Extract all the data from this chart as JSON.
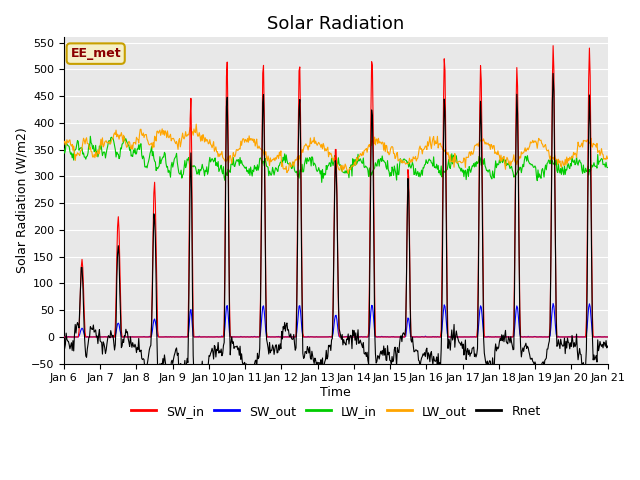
{
  "title": "Solar Radiation",
  "xlabel": "Time",
  "ylabel": "Solar Radiation (W/m2)",
  "ylim": [
    -50,
    560
  ],
  "yticks": [
    -50,
    0,
    50,
    100,
    150,
    200,
    250,
    300,
    350,
    400,
    450,
    500,
    550
  ],
  "xlim_start": 6,
  "xlim_end": 21,
  "xtick_labels": [
    "Jan 6",
    "Jan 7",
    "Jan 8",
    "Jan 9",
    "Jan 10",
    "Jan 11",
    "Jan 12",
    "Jan 13",
    "Jan 14",
    "Jan 15",
    "Jan 16",
    "Jan 17",
    "Jan 18",
    "Jan 19",
    "Jan 20",
    "Jan 21"
  ],
  "colors": {
    "SW_in": "#ff0000",
    "SW_out": "#0000ff",
    "LW_in": "#00cc00",
    "LW_out": "#ffa500",
    "Rnet": "#000000"
  },
  "legend_labels": [
    "SW_in",
    "SW_out",
    "LW_in",
    "LW_out",
    "Rnet"
  ],
  "watermark_text": "EE_met",
  "watermark_color": "#8B0000",
  "watermark_bg": "#f5f0c8",
  "watermark_border": "#c8a000",
  "background_color": "#e8e8e8",
  "grid_color": "#ffffff",
  "title_fontsize": 13,
  "axis_label_fontsize": 9,
  "tick_fontsize": 8,
  "legend_fontsize": 9,
  "linewidth": 0.8
}
